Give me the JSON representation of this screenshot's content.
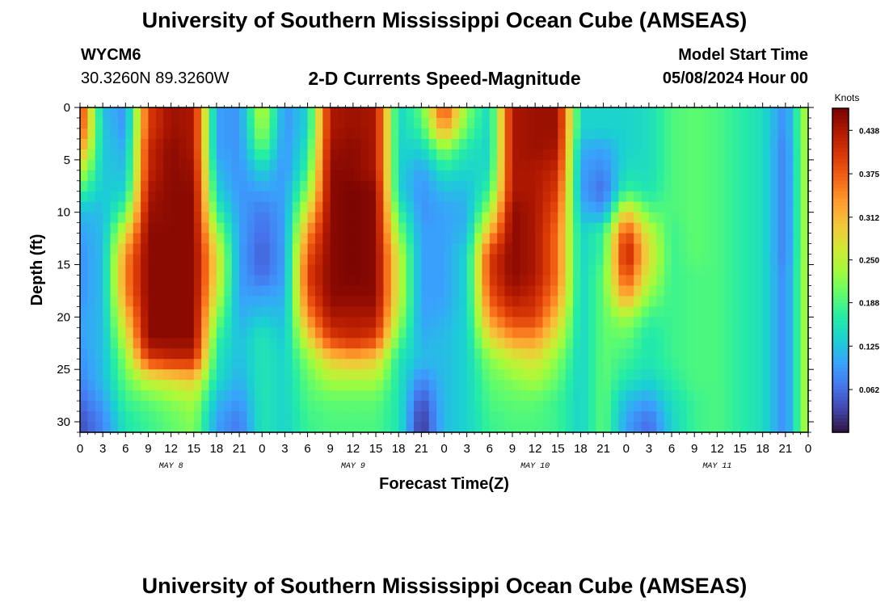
{
  "page": {
    "title_top": "University of Southern Mississippi Ocean Cube (AMSEAS)",
    "title_bottom": "University of Southern Mississippi Ocean Cube (AMSEAS)",
    "station_id": "WYCM6",
    "coordinates": "30.3260N  89.3260W",
    "subtitle": "2-D Currents Speed-Magnitude",
    "model_start_label": "Model Start Time",
    "model_start_value": "05/08/2024 Hour 00"
  },
  "chart_data": {
    "type": "heatmap",
    "title": "2-D Currents Speed-Magnitude",
    "xlabel": "Forecast Time(Z)",
    "ylabel": "Depth (ft)",
    "x_unit": "hours since model start (05/08/2024 00Z)",
    "xlim": [
      0,
      96
    ],
    "ylim": [
      0,
      31
    ],
    "y_inverted": true,
    "x_tick_labels": [
      "0",
      "3",
      "6",
      "9",
      "12",
      "15",
      "18",
      "21",
      "0",
      "3",
      "6",
      "9",
      "12",
      "15",
      "18",
      "21",
      "0",
      "3",
      "6",
      "9",
      "12",
      "15",
      "18",
      "21",
      "0",
      "3",
      "6",
      "9",
      "12",
      "15",
      "18",
      "21",
      "0"
    ],
    "y_ticks": [
      0,
      5,
      10,
      15,
      20,
      25,
      30
    ],
    "date_labels": [
      {
        "label": "MAY 8",
        "hour": 12
      },
      {
        "label": "MAY 9",
        "hour": 36
      },
      {
        "label": "MAY 10",
        "hour": 60
      },
      {
        "label": "MAY 11",
        "hour": 84
      }
    ],
    "colorbar": {
      "unit": "Knots",
      "min": 0.0,
      "max": 0.47,
      "tick_labels": [
        "0.438",
        "0.375",
        "0.312",
        "0.250",
        "0.188",
        "0.125",
        "0.062"
      ],
      "tick_values": [
        0.438,
        0.375,
        0.312,
        0.25,
        0.188,
        0.125,
        0.062
      ]
    },
    "colormap": [
      "#30123b",
      "#4145ab",
      "#4675ed",
      "#39a2fc",
      "#1bcfd4",
      "#24eca6",
      "#61fc6c",
      "#a4fc3b",
      "#d1e834",
      "#f3c63a",
      "#fe9b2d",
      "#f36315",
      "#d93806",
      "#b11901",
      "#7a0402"
    ],
    "depth_levels_ft": [
      0,
      2,
      4,
      6,
      8,
      10,
      12,
      14,
      16,
      18,
      20,
      22,
      24,
      26,
      28,
      30
    ],
    "hour_columns": [
      0,
      3,
      6,
      9,
      12,
      15,
      18,
      21,
      24,
      27,
      30,
      33,
      36,
      39,
      42,
      45,
      48,
      51,
      54,
      57,
      60,
      63,
      66,
      69,
      72,
      75,
      78,
      81,
      84,
      87,
      90,
      93,
      96
    ],
    "speed_grid_knots": [
      [
        0.41,
        0.12,
        0.09,
        0.4,
        0.45,
        0.44,
        0.1,
        0.09,
        0.26,
        0.09,
        0.14,
        0.44,
        0.45,
        0.44,
        0.14,
        0.2,
        0.4,
        0.22,
        0.14,
        0.44,
        0.45,
        0.45,
        0.14,
        0.14,
        0.14,
        0.15,
        0.19,
        0.2,
        0.19,
        0.17,
        0.15,
        0.08,
        0.26
      ],
      [
        0.4,
        0.13,
        0.09,
        0.4,
        0.45,
        0.44,
        0.1,
        0.09,
        0.24,
        0.09,
        0.14,
        0.44,
        0.45,
        0.44,
        0.14,
        0.18,
        0.34,
        0.2,
        0.14,
        0.44,
        0.45,
        0.45,
        0.14,
        0.14,
        0.14,
        0.15,
        0.19,
        0.2,
        0.19,
        0.17,
        0.15,
        0.08,
        0.26
      ],
      [
        0.34,
        0.13,
        0.11,
        0.42,
        0.46,
        0.44,
        0.1,
        0.09,
        0.2,
        0.09,
        0.16,
        0.45,
        0.46,
        0.44,
        0.14,
        0.14,
        0.22,
        0.16,
        0.14,
        0.44,
        0.45,
        0.44,
        0.11,
        0.1,
        0.14,
        0.15,
        0.19,
        0.2,
        0.19,
        0.17,
        0.15,
        0.07,
        0.26
      ],
      [
        0.26,
        0.13,
        0.12,
        0.42,
        0.46,
        0.45,
        0.12,
        0.09,
        0.14,
        0.09,
        0.18,
        0.46,
        0.46,
        0.44,
        0.14,
        0.1,
        0.16,
        0.14,
        0.15,
        0.44,
        0.44,
        0.42,
        0.1,
        0.08,
        0.15,
        0.15,
        0.19,
        0.2,
        0.19,
        0.17,
        0.15,
        0.07,
        0.26
      ],
      [
        0.18,
        0.13,
        0.14,
        0.44,
        0.46,
        0.46,
        0.14,
        0.09,
        0.1,
        0.1,
        0.22,
        0.46,
        0.47,
        0.46,
        0.14,
        0.09,
        0.12,
        0.12,
        0.18,
        0.44,
        0.44,
        0.4,
        0.1,
        0.06,
        0.18,
        0.16,
        0.19,
        0.2,
        0.19,
        0.17,
        0.15,
        0.07,
        0.26
      ],
      [
        0.12,
        0.12,
        0.2,
        0.45,
        0.46,
        0.46,
        0.18,
        0.1,
        0.07,
        0.1,
        0.28,
        0.46,
        0.47,
        0.46,
        0.18,
        0.09,
        0.1,
        0.11,
        0.24,
        0.46,
        0.44,
        0.38,
        0.12,
        0.1,
        0.3,
        0.2,
        0.19,
        0.2,
        0.19,
        0.17,
        0.15,
        0.07,
        0.26
      ],
      [
        0.1,
        0.12,
        0.28,
        0.46,
        0.46,
        0.46,
        0.24,
        0.1,
        0.06,
        0.1,
        0.34,
        0.46,
        0.47,
        0.46,
        0.22,
        0.1,
        0.1,
        0.12,
        0.32,
        0.46,
        0.44,
        0.36,
        0.14,
        0.18,
        0.4,
        0.26,
        0.18,
        0.2,
        0.19,
        0.17,
        0.15,
        0.07,
        0.26
      ],
      [
        0.09,
        0.12,
        0.34,
        0.46,
        0.46,
        0.46,
        0.28,
        0.1,
        0.05,
        0.1,
        0.38,
        0.46,
        0.47,
        0.46,
        0.26,
        0.1,
        0.1,
        0.14,
        0.4,
        0.46,
        0.44,
        0.36,
        0.14,
        0.18,
        0.44,
        0.28,
        0.18,
        0.2,
        0.19,
        0.17,
        0.15,
        0.07,
        0.26
      ],
      [
        0.09,
        0.12,
        0.35,
        0.46,
        0.46,
        0.46,
        0.28,
        0.1,
        0.06,
        0.1,
        0.4,
        0.46,
        0.47,
        0.46,
        0.26,
        0.1,
        0.1,
        0.14,
        0.4,
        0.46,
        0.44,
        0.36,
        0.14,
        0.2,
        0.4,
        0.26,
        0.18,
        0.19,
        0.19,
        0.17,
        0.15,
        0.08,
        0.26
      ],
      [
        0.09,
        0.12,
        0.34,
        0.46,
        0.46,
        0.46,
        0.26,
        0.1,
        0.1,
        0.11,
        0.38,
        0.46,
        0.46,
        0.46,
        0.26,
        0.1,
        0.1,
        0.14,
        0.38,
        0.44,
        0.42,
        0.34,
        0.14,
        0.2,
        0.34,
        0.22,
        0.18,
        0.19,
        0.19,
        0.17,
        0.15,
        0.08,
        0.26
      ],
      [
        0.1,
        0.12,
        0.3,
        0.46,
        0.46,
        0.46,
        0.22,
        0.11,
        0.13,
        0.12,
        0.34,
        0.44,
        0.44,
        0.44,
        0.24,
        0.1,
        0.11,
        0.14,
        0.34,
        0.4,
        0.4,
        0.3,
        0.14,
        0.2,
        0.24,
        0.18,
        0.18,
        0.19,
        0.19,
        0.17,
        0.15,
        0.08,
        0.26
      ],
      [
        0.1,
        0.12,
        0.26,
        0.46,
        0.46,
        0.46,
        0.18,
        0.12,
        0.16,
        0.13,
        0.28,
        0.4,
        0.42,
        0.4,
        0.2,
        0.11,
        0.12,
        0.14,
        0.28,
        0.34,
        0.34,
        0.26,
        0.14,
        0.2,
        0.2,
        0.16,
        0.18,
        0.19,
        0.19,
        0.17,
        0.15,
        0.08,
        0.26
      ],
      [
        0.09,
        0.12,
        0.22,
        0.4,
        0.42,
        0.42,
        0.16,
        0.12,
        0.16,
        0.14,
        0.22,
        0.3,
        0.32,
        0.3,
        0.16,
        0.12,
        0.12,
        0.14,
        0.22,
        0.26,
        0.28,
        0.22,
        0.14,
        0.2,
        0.18,
        0.16,
        0.18,
        0.19,
        0.19,
        0.17,
        0.15,
        0.08,
        0.26
      ],
      [
        0.08,
        0.12,
        0.2,
        0.26,
        0.28,
        0.3,
        0.15,
        0.11,
        0.16,
        0.14,
        0.2,
        0.24,
        0.24,
        0.24,
        0.16,
        0.08,
        0.12,
        0.14,
        0.2,
        0.22,
        0.24,
        0.2,
        0.14,
        0.2,
        0.16,
        0.14,
        0.17,
        0.19,
        0.19,
        0.17,
        0.15,
        0.08,
        0.26
      ],
      [
        0.06,
        0.1,
        0.18,
        0.2,
        0.22,
        0.24,
        0.12,
        0.09,
        0.16,
        0.14,
        0.19,
        0.2,
        0.2,
        0.2,
        0.16,
        0.04,
        0.12,
        0.14,
        0.19,
        0.2,
        0.2,
        0.18,
        0.14,
        0.2,
        0.12,
        0.1,
        0.15,
        0.18,
        0.19,
        0.17,
        0.15,
        0.08,
        0.26
      ],
      [
        0.04,
        0.08,
        0.16,
        0.18,
        0.2,
        0.22,
        0.1,
        0.07,
        0.16,
        0.14,
        0.18,
        0.19,
        0.19,
        0.19,
        0.16,
        0.02,
        0.12,
        0.14,
        0.18,
        0.19,
        0.19,
        0.18,
        0.14,
        0.2,
        0.1,
        0.06,
        0.14,
        0.18,
        0.19,
        0.17,
        0.15,
        0.08,
        0.26
      ]
    ]
  }
}
